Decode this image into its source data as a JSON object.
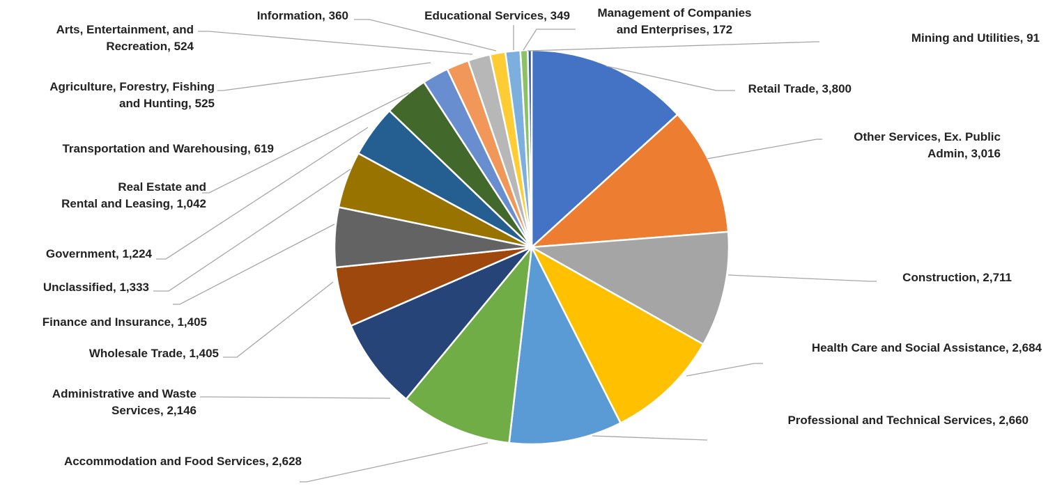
{
  "chart_data": {
    "type": "pie",
    "title": "",
    "legend": "none",
    "slices": [
      {
        "label": "Retail Trade",
        "value": 3800,
        "value_label": "3,800",
        "color": "#4472C4"
      },
      {
        "label": "Other Services, Ex. Public Admin",
        "value": 3016,
        "value_label": "3,016",
        "color": "#ED7D31"
      },
      {
        "label": "Construction",
        "value": 2711,
        "value_label": "2,711",
        "color": "#A5A5A5"
      },
      {
        "label": "Health Care and Social Assistance",
        "value": 2684,
        "value_label": "2,684",
        "color": "#FFC000"
      },
      {
        "label": "Professional and Technical Services",
        "value": 2660,
        "value_label": "2,660",
        "color": "#5B9BD5"
      },
      {
        "label": "Accommodation and Food Services",
        "value": 2628,
        "value_label": "2,628",
        "color": "#70AD47"
      },
      {
        "label": "Administrative and Waste Services",
        "value": 2146,
        "value_label": "2,146",
        "color": "#264478"
      },
      {
        "label": "Wholesale Trade",
        "value": 1405,
        "value_label": "1,405",
        "color": "#9E480E"
      },
      {
        "label": "Finance and Insurance",
        "value": 1405,
        "value_label": "1,405",
        "color": "#636363"
      },
      {
        "label": "Unclassified",
        "value": 1333,
        "value_label": "1,333",
        "color": "#997300"
      },
      {
        "label": "Government",
        "value": 1224,
        "value_label": "1,224",
        "color": "#255E91"
      },
      {
        "label": "Real Estate and Rental and Leasing",
        "value": 1042,
        "value_label": "1,042",
        "color": "#43682B"
      },
      {
        "label": "Transportation and Warehousing",
        "value": 619,
        "value_label": "619",
        "color": "#698ED0"
      },
      {
        "label": "Agriculture, Forestry, Fishing and Hunting",
        "value": 525,
        "value_label": "525",
        "color": "#F1975A"
      },
      {
        "label": "Arts, Entertainment, and Recreation",
        "value": 524,
        "value_label": "524",
        "color": "#B7B7B7"
      },
      {
        "label": "Information",
        "value": 360,
        "value_label": "360",
        "color": "#FFCD33"
      },
      {
        "label": "Educational Services",
        "value": 349,
        "value_label": "349",
        "color": "#7CAFDD"
      },
      {
        "label": "Management of Companies and Enterprises",
        "value": 172,
        "value_label": "172",
        "color": "#8CC168"
      },
      {
        "label": "Mining and Utilities",
        "value": 91,
        "value_label": "91",
        "color": "#335AA1"
      }
    ]
  }
}
